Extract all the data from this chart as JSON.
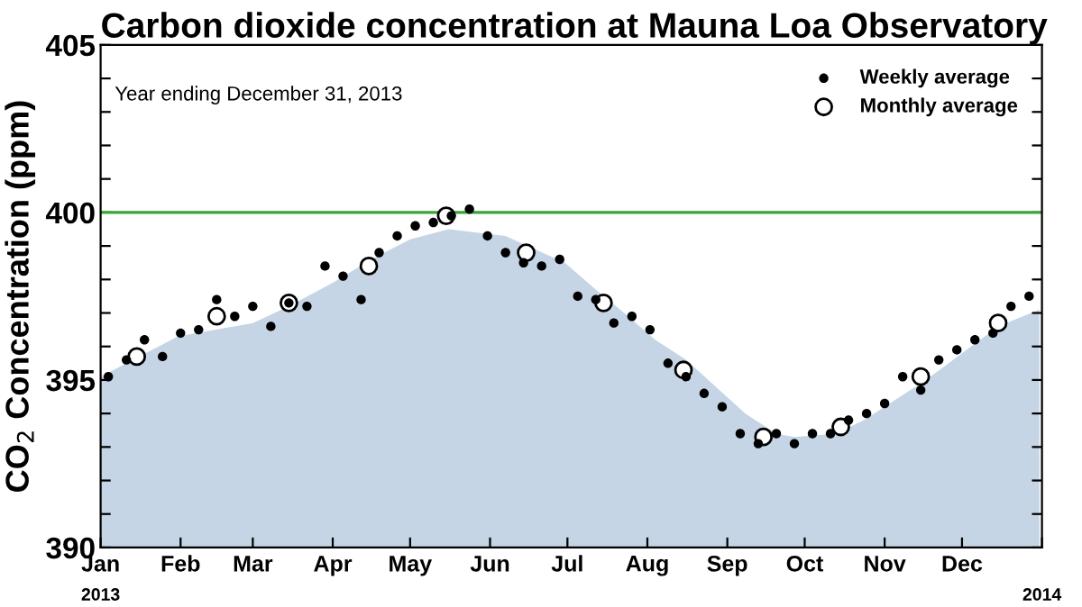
{
  "chart_data": {
    "type": "scatter",
    "title": "Carbon dioxide concentration at Mauna Loa Observatory",
    "ylabel": "CO$_{2}$ Concentration (ppm)",
    "annotations": [
      "Year ending December 31, 2013"
    ],
    "series": [
      {
        "type": "area",
        "color": "#c5d5e6",
        "x": [
          "2013-01-01",
          "2013-01-31",
          "2013-03-01",
          "2013-03-15",
          "2013-04-01",
          "2013-04-16",
          "2013-05-01",
          "2013-05-16",
          "2013-06-07",
          "2013-06-30",
          "2013-07-12",
          "2013-07-23",
          "2013-08-04",
          "2013-08-16",
          "2013-09-08",
          "2013-09-20",
          "2013-09-27",
          "2013-10-13",
          "2013-10-24",
          "2013-11-17",
          "2013-12-15",
          "2013-12-31"
        ],
        "values": [
          395.1,
          396.3,
          396.7,
          397.2,
          397.9,
          398.6,
          399.2,
          399.5,
          399.3,
          398.5,
          397.7,
          397.0,
          396.2,
          395.6,
          394.0,
          393.4,
          393.3,
          393.4,
          393.8,
          395.0,
          396.6,
          397.1
        ]
      },
      {
        "name": "Weekly average",
        "color": "#000000",
        "marker": "circle",
        "x": [
          "2013-01-04",
          "2013-01-11",
          "2013-01-18",
          "2013-01-25",
          "2013-02-01",
          "2013-02-08",
          "2013-02-15",
          "2013-02-22",
          "2013-03-01",
          "2013-03-08",
          "2013-03-15",
          "2013-03-22",
          "2013-03-29",
          "2013-04-05",
          "2013-04-12",
          "2013-04-19",
          "2013-04-26",
          "2013-05-03",
          "2013-05-10",
          "2013-05-17",
          "2013-05-24",
          "2013-05-31",
          "2013-06-07",
          "2013-06-14",
          "2013-06-21",
          "2013-06-28",
          "2013-07-05",
          "2013-07-12",
          "2013-07-19",
          "2013-07-26",
          "2013-08-02",
          "2013-08-09",
          "2013-08-16",
          "2013-08-23",
          "2013-08-30",
          "2013-09-06",
          "2013-09-13",
          "2013-09-20",
          "2013-09-27",
          "2013-10-04",
          "2013-10-11",
          "2013-10-18",
          "2013-10-25",
          "2013-11-01",
          "2013-11-08",
          "2013-11-15",
          "2013-11-22",
          "2013-11-29",
          "2013-12-06",
          "2013-12-13",
          "2013-12-20",
          "2013-12-27"
        ],
        "values": [
          395.1,
          395.6,
          396.2,
          395.7,
          396.4,
          396.5,
          397.4,
          396.9,
          397.2,
          396.6,
          397.3,
          397.2,
          398.4,
          398.1,
          397.4,
          398.8,
          399.3,
          399.6,
          399.7,
          399.9,
          400.1,
          399.3,
          398.8,
          398.5,
          398.4,
          398.6,
          397.5,
          397.4,
          396.7,
          396.9,
          396.5,
          395.5,
          395.1,
          394.6,
          394.2,
          393.4,
          393.1,
          393.4,
          393.1,
          393.4,
          393.4,
          393.8,
          394.0,
          394.3,
          395.1,
          394.7,
          395.6,
          395.9,
          396.2,
          396.4,
          397.2,
          397.5
        ]
      },
      {
        "name": "Monthly average",
        "color": "#ffffff",
        "marker": "circle",
        "x": [
          "2013-01-15",
          "2013-02-15",
          "2013-03-15",
          "2013-04-15",
          "2013-05-15",
          "2013-06-15",
          "2013-07-15",
          "2013-08-15",
          "2013-09-15",
          "2013-10-15",
          "2013-11-15",
          "2013-12-15"
        ],
        "values": [
          395.7,
          396.9,
          397.3,
          398.4,
          399.9,
          398.8,
          397.3,
          395.3,
          393.3,
          393.6,
          395.1,
          396.7
        ]
      }
    ],
    "ref_lines": [
      {
        "axis": "y",
        "value": 400,
        "color": "#3aa635"
      }
    ],
    "xlim": [
      "2013-01-01",
      "2014-01-01"
    ],
    "xticks": [
      {
        "value": "2013-01-01",
        "label": "Jan"
      },
      {
        "value": "2013-02-01",
        "label": "Feb"
      },
      {
        "value": "2013-03-01",
        "label": "Mar"
      },
      {
        "value": "2013-04-01",
        "label": "Apr"
      },
      {
        "value": "2013-05-01",
        "label": "May"
      },
      {
        "value": "2013-06-01",
        "label": "Jun"
      },
      {
        "value": "2013-07-01",
        "label": "Jul"
      },
      {
        "value": "2013-08-01",
        "label": "Aug"
      },
      {
        "value": "2013-09-01",
        "label": "Sep"
      },
      {
        "value": "2013-10-01",
        "label": "Oct"
      },
      {
        "value": "2013-11-01",
        "label": "Nov"
      },
      {
        "value": "2013-12-01",
        "label": "Dec"
      },
      {
        "value": "2014-01-01",
        "label": null
      }
    ],
    "x2lim": [
      "2013-01-01",
      "2014-01-01"
    ],
    "x2ticks": [
      {
        "value": "2013-01-01",
        "label": "2013"
      },
      {
        "value": "2014-01-01",
        "label": "2014"
      }
    ],
    "ylim": [
      390,
      405
    ],
    "yticks": [
      390,
      {
        "value": 391,
        "label": null
      },
      {
        "value": 392,
        "label": null
      },
      {
        "value": 393,
        "label": null
      },
      {
        "value": 394,
        "label": null
      },
      395,
      {
        "value": 396,
        "label": null
      },
      {
        "value": 397,
        "label": null
      },
      {
        "value": 398,
        "label": null
      },
      {
        "value": 399,
        "label": null
      },
      400,
      {
        "value": 401,
        "label": null
      },
      {
        "value": 402,
        "label": null
      },
      {
        "value": 403,
        "label": null
      },
      {
        "value": 404,
        "label": null
      },
      405
    ],
    "legend": "top right",
    "grid": false
  }
}
